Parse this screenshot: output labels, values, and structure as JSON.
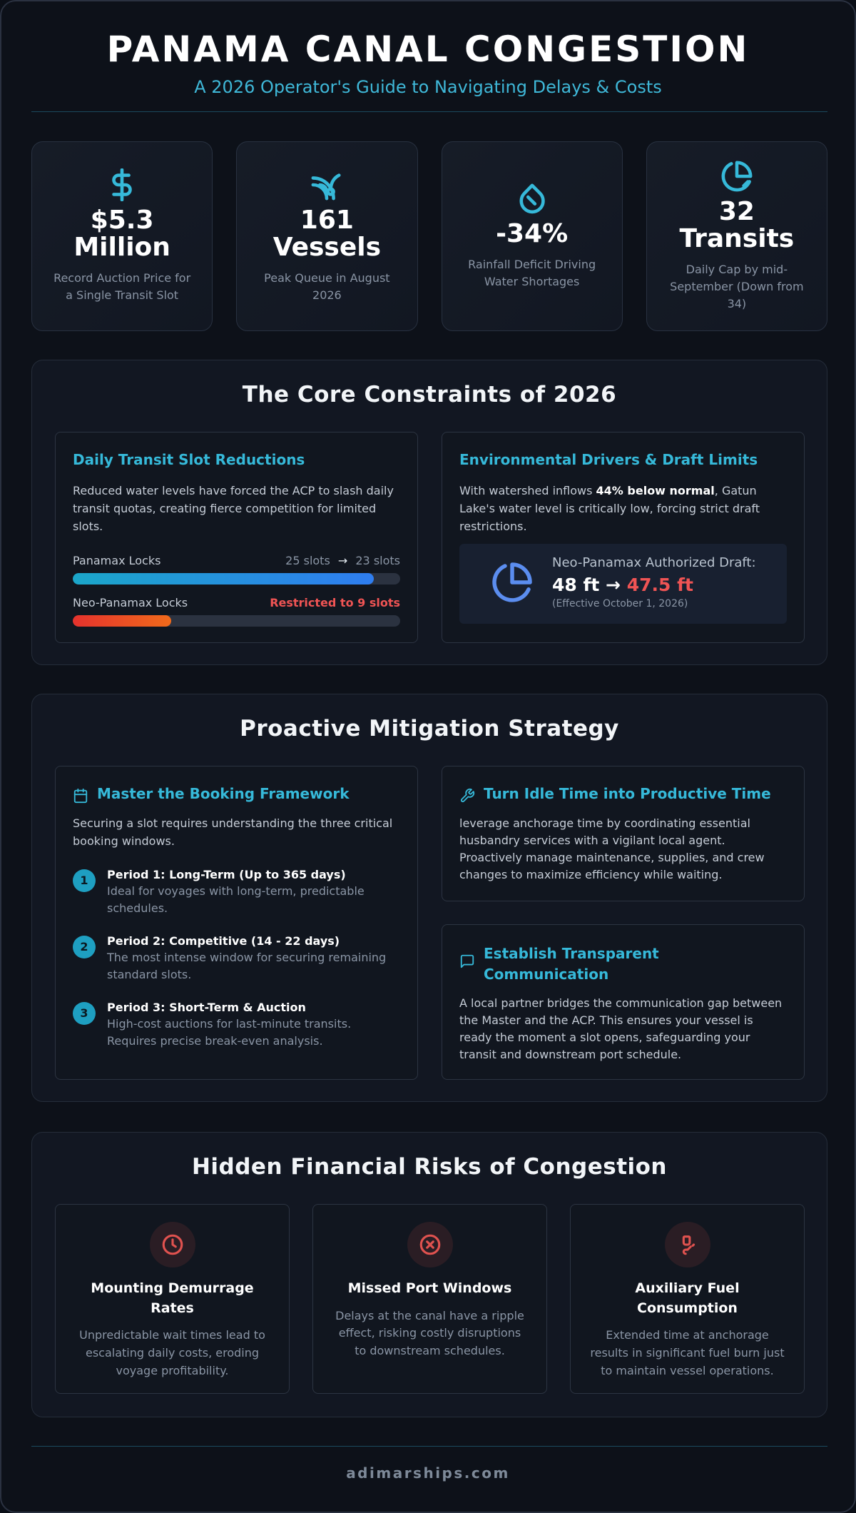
{
  "header": {
    "title": "PANAMA CANAL CONGESTION",
    "subtitle": "A 2026 Operator's Guide to Navigating Delays & Costs"
  },
  "stats": [
    {
      "icon": "dollar-icon",
      "value": "$5.3 Million",
      "label": "Record Auction Price for a Single Transit Slot"
    },
    {
      "icon": "ship-waves-icon",
      "value": "161 Vessels",
      "label": "Peak Queue in August 2026"
    },
    {
      "icon": "water-drop-icon",
      "value": "-34%",
      "label": "Rainfall Deficit Driving Water Shortages"
    },
    {
      "icon": "pie-chart-icon",
      "value": "32 Transits",
      "label": "Daily Cap by mid-September (Down from 34)"
    }
  ],
  "constraints": {
    "title": "The Core Constraints of 2026",
    "slots": {
      "title": "Daily Transit Slot Reductions",
      "text": "Reduced water levels have forced the ACP to slash daily transit quotas, creating fierce competition for limited slots.",
      "bars": [
        {
          "label": "Panamax Locks",
          "from": "25 slots",
          "arrow": "→",
          "to": "23 slots",
          "fill": 0.92
        },
        {
          "label": "Neo-Panamax Locks",
          "status": "Restricted to 9 slots",
          "fill": 0.3
        }
      ]
    },
    "environment": {
      "title": "Environmental Drivers & Draft Limits",
      "text_before": "With watershed inflows ",
      "text_bold": "44% below normal",
      "text_after": ", Gatun Lake's water level is critically low, forcing strict draft restrictions.",
      "draft_label": "Neo-Panamax Authorized Draft:",
      "draft_old": "48 ft →",
      "draft_new": "47.5 ft",
      "draft_note": "(Effective October 1, 2026)"
    }
  },
  "mitigation": {
    "title": "Proactive Mitigation Strategy",
    "booking": {
      "title": "Master the Booking Framework",
      "text": "Securing a slot requires understanding the three critical booking windows.",
      "periods": [
        {
          "num": "1",
          "title": "Period 1: Long-Term (Up to 365 days)",
          "desc": "Ideal for voyages with long-term, predictable schedules."
        },
        {
          "num": "2",
          "title": "Period 2: Competitive (14 - 22 days)",
          "desc": "The most intense window for securing remaining standard slots."
        },
        {
          "num": "3",
          "title": "Period 3: Short-Term & Auction",
          "desc": "High-cost auctions for last-minute transits. Requires precise break-even analysis."
        }
      ]
    },
    "idle": {
      "title": "Turn Idle Time into Productive Time",
      "text": "leverage anchorage time by coordinating essential husbandry services with a vigilant local agent. Proactively manage maintenance, supplies, and crew changes to maximize efficiency while waiting."
    },
    "comms": {
      "title": "Establish Transparent Communication",
      "text": "A local partner bridges the communication gap between the Master and the ACP. This ensures your vessel is ready the moment a slot opens, safeguarding your transit and downstream port schedule."
    }
  },
  "risks": {
    "title": "Hidden Financial Risks of Congestion",
    "items": [
      {
        "icon": "clock-icon",
        "title": "Mounting Demurrage Rates",
        "desc": "Unpredictable wait times lead to escalating daily costs, eroding voyage profitability."
      },
      {
        "icon": "x-circle-icon",
        "title": "Missed Port Windows",
        "desc": "Delays at the canal have a ripple effect, risking costly disruptions to downstream schedules."
      },
      {
        "icon": "fuel-icon",
        "title": "Auxiliary Fuel Consumption",
        "desc": "Extended time at anchorage results in significant fuel burn just to maintain vessel operations."
      }
    ]
  },
  "footer": {
    "text": "adimarships.com"
  },
  "colors": {
    "accent": "#36b9d9",
    "danger": "#f05454",
    "background": "#0d1119"
  }
}
